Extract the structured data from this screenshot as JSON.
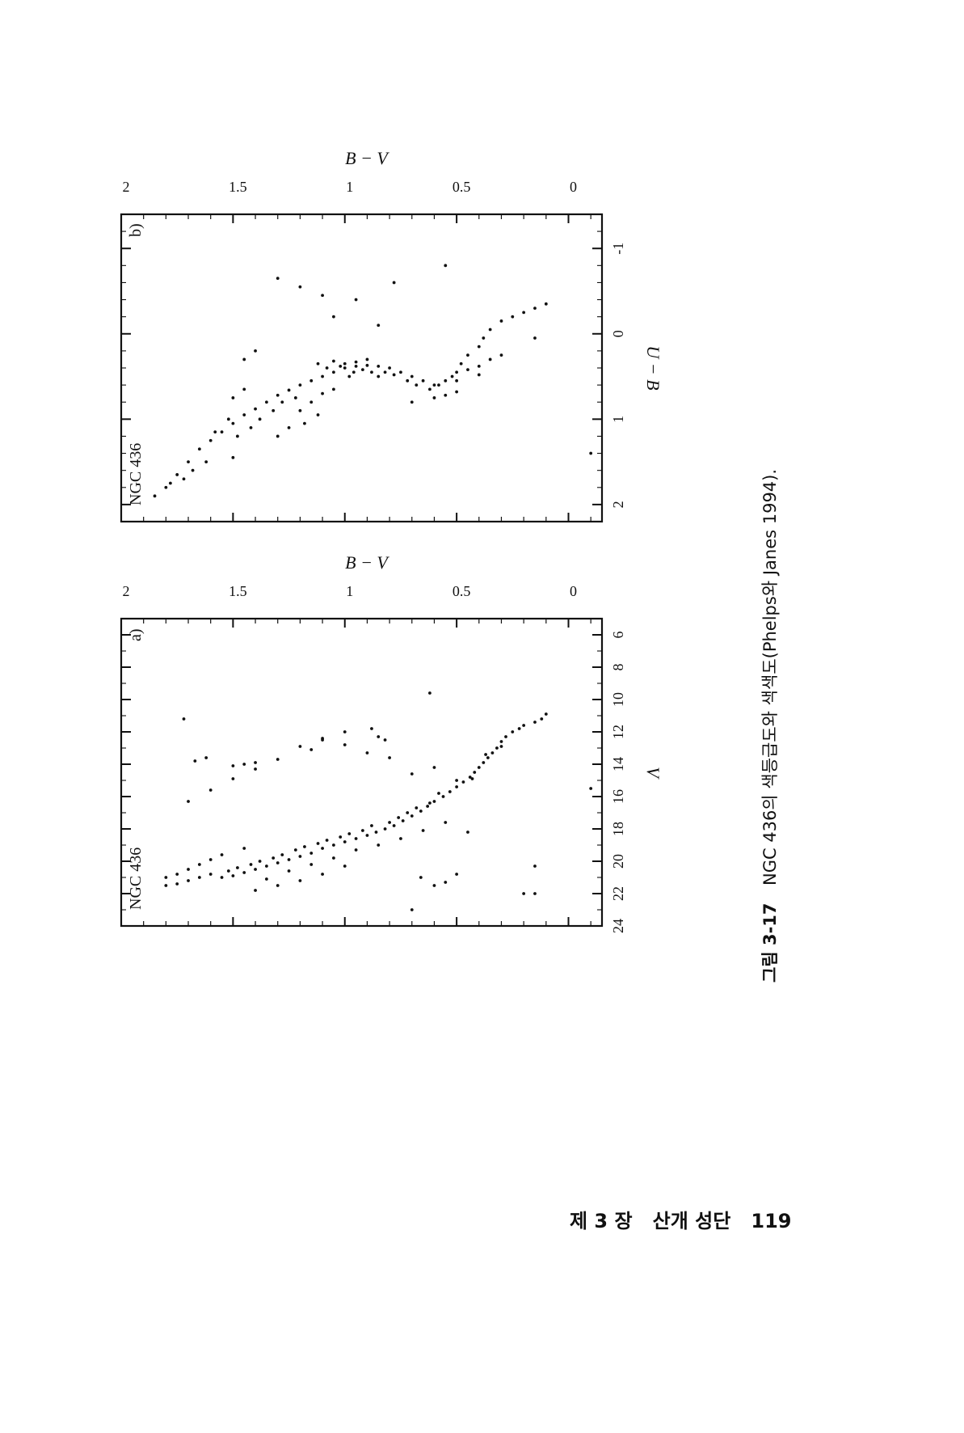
{
  "page": {
    "footer": "제 3 장   산개 성단   119",
    "caption": {
      "label": "그림 3-17",
      "text": "NGC 436의  색등급도와  색색도(Phelps와  Janes 1994)."
    }
  },
  "chart_data": [
    {
      "type": "scatter",
      "panel_label": "a)",
      "title": "NGC 436",
      "xlabel": "B − V",
      "ylabel": "V",
      "xlim": [
        -0.15,
        2.0
      ],
      "ylim": [
        24.0,
        5.0
      ],
      "x_ticks": [
        "0",
        "0.5",
        "1",
        "1.5",
        "2"
      ],
      "x_tick_values": [
        0,
        0.5,
        1,
        1.5,
        2
      ],
      "y_ticks": [
        "6",
        "8",
        "10",
        "12",
        "14",
        "16",
        "18",
        "20",
        "22",
        "24"
      ],
      "y_tick_values": [
        6,
        8,
        10,
        12,
        14,
        16,
        18,
        20,
        22,
        24
      ],
      "y_inverted": true,
      "grid": false,
      "points": [
        [
          0.1,
          10.9
        ],
        [
          0.12,
          11.2
        ],
        [
          0.15,
          11.4
        ],
        [
          0.2,
          11.6
        ],
        [
          0.25,
          12.0
        ],
        [
          0.28,
          12.3
        ],
        [
          0.3,
          12.6
        ],
        [
          0.32,
          13.0
        ],
        [
          0.34,
          13.3
        ],
        [
          0.36,
          13.6
        ],
        [
          0.38,
          13.9
        ],
        [
          0.4,
          14.2
        ],
        [
          0.42,
          14.5
        ],
        [
          0.44,
          14.8
        ],
        [
          0.47,
          15.1
        ],
        [
          0.5,
          15.4
        ],
        [
          0.53,
          15.7
        ],
        [
          0.56,
          16.0
        ],
        [
          0.6,
          16.3
        ],
        [
          0.63,
          16.6
        ],
        [
          0.66,
          16.9
        ],
        [
          0.7,
          17.2
        ],
        [
          0.74,
          17.5
        ],
        [
          0.78,
          17.8
        ],
        [
          0.82,
          18.0
        ],
        [
          0.86,
          18.2
        ],
        [
          0.9,
          18.4
        ],
        [
          0.95,
          18.6
        ],
        [
          1.0,
          18.8
        ],
        [
          1.05,
          19.0
        ],
        [
          1.1,
          19.2
        ],
        [
          1.15,
          19.5
        ],
        [
          1.2,
          19.7
        ],
        [
          1.25,
          19.9
        ],
        [
          1.3,
          20.1
        ],
        [
          1.35,
          20.3
        ],
        [
          1.4,
          20.5
        ],
        [
          1.45,
          20.7
        ],
        [
          1.5,
          20.9
        ],
        [
          1.55,
          21.0
        ],
        [
          0.22,
          11.8
        ],
        [
          0.3,
          12.9
        ],
        [
          0.37,
          13.4
        ],
        [
          0.43,
          14.9
        ],
        [
          0.5,
          15.0
        ],
        [
          0.58,
          15.8
        ],
        [
          0.62,
          16.4
        ],
        [
          0.68,
          16.7
        ],
        [
          0.72,
          17.0
        ],
        [
          0.76,
          17.3
        ],
        [
          0.8,
          17.6
        ],
        [
          0.88,
          17.8
        ],
        [
          0.92,
          18.1
        ],
        [
          0.98,
          18.3
        ],
        [
          1.02,
          18.5
        ],
        [
          1.08,
          18.7
        ],
        [
          1.12,
          18.9
        ],
        [
          1.18,
          19.1
        ],
        [
          1.22,
          19.3
        ],
        [
          1.28,
          19.6
        ],
        [
          1.32,
          19.8
        ],
        [
          1.38,
          20.0
        ],
        [
          1.42,
          20.2
        ],
        [
          1.48,
          20.4
        ],
        [
          1.52,
          20.6
        ],
        [
          1.6,
          20.8
        ],
        [
          1.65,
          21.0
        ],
        [
          1.7,
          21.2
        ],
        [
          1.75,
          21.4
        ],
        [
          1.8,
          21.5
        ],
        [
          0.6,
          14.2
        ],
        [
          0.7,
          14.6
        ],
        [
          0.8,
          13.6
        ],
        [
          0.9,
          13.3
        ],
        [
          1.0,
          12.8
        ],
        [
          1.1,
          12.4
        ],
        [
          1.2,
          12.9
        ],
        [
          1.3,
          13.7
        ],
        [
          1.4,
          14.3
        ],
        [
          1.5,
          14.9
        ],
        [
          1.6,
          15.6
        ],
        [
          1.7,
          16.3
        ],
        [
          0.95,
          19.3
        ],
        [
          1.05,
          19.8
        ],
        [
          1.15,
          20.2
        ],
        [
          1.25,
          20.6
        ],
        [
          1.35,
          21.1
        ],
        [
          1.0,
          20.3
        ],
        [
          1.1,
          20.8
        ],
        [
          1.2,
          21.2
        ],
        [
          1.3,
          21.5
        ],
        [
          1.4,
          21.8
        ],
        [
          0.85,
          19.0
        ],
        [
          0.75,
          18.6
        ],
        [
          0.65,
          18.1
        ],
        [
          0.55,
          17.6
        ],
        [
          1.45,
          19.2
        ],
        [
          1.55,
          19.6
        ],
        [
          1.6,
          19.9
        ],
        [
          1.65,
          20.2
        ],
        [
          1.7,
          20.5
        ],
        [
          1.75,
          20.8
        ],
        [
          1.8,
          21.0
        ],
        [
          0.2,
          22.0
        ],
        [
          0.15,
          20.3
        ],
        [
          0.45,
          18.2
        ],
        [
          0.5,
          20.8
        ],
        [
          0.55,
          21.3
        ],
        [
          0.6,
          21.5
        ],
        [
          0.66,
          21.0
        ],
        [
          0.7,
          23.0
        ],
        [
          0.15,
          22.0
        ],
        [
          -0.1,
          15.5
        ],
        [
          0.62,
          9.6
        ],
        [
          1.0,
          12.0
        ],
        [
          1.1,
          12.5
        ],
        [
          1.15,
          13.1
        ],
        [
          1.62,
          13.6
        ],
        [
          1.67,
          13.8
        ],
        [
          1.4,
          13.9
        ],
        [
          1.45,
          14.0
        ],
        [
          1.5,
          14.1
        ],
        [
          1.72,
          11.2
        ],
        [
          0.85,
          12.3
        ],
        [
          0.82,
          12.5
        ],
        [
          0.88,
          11.8
        ]
      ],
      "features": [
        "main sequence from (0.1, 11) down to (1.2, 19)",
        "dense giant/field clump around B−V 1.0–1.6, V 18–21.5"
      ]
    },
    {
      "type": "scatter",
      "panel_label": "b)",
      "title": "NGC 436",
      "xlabel": "B − V",
      "ylabel": "U − B",
      "xlim": [
        -0.15,
        2.0
      ],
      "ylim": [
        2.2,
        -1.4
      ],
      "x_ticks": [
        "0",
        "0.5",
        "1",
        "1.5",
        "2"
      ],
      "x_tick_values": [
        0,
        0.5,
        1,
        1.5,
        2
      ],
      "y_ticks": [
        "-1",
        "0",
        "1",
        "2"
      ],
      "y_tick_values": [
        -1,
        0,
        1,
        2
      ],
      "y_inverted": true,
      "grid": false,
      "points": [
        [
          0.1,
          -0.35
        ],
        [
          0.15,
          -0.3
        ],
        [
          0.2,
          -0.25
        ],
        [
          0.25,
          -0.2
        ],
        [
          0.3,
          -0.15
        ],
        [
          0.35,
          -0.05
        ],
        [
          0.38,
          0.05
        ],
        [
          0.4,
          0.15
        ],
        [
          0.45,
          0.25
        ],
        [
          0.48,
          0.35
        ],
        [
          0.5,
          0.45
        ],
        [
          0.55,
          0.55
        ],
        [
          0.6,
          0.6
        ],
        [
          0.65,
          0.55
        ],
        [
          0.7,
          0.5
        ],
        [
          0.75,
          0.45
        ],
        [
          0.8,
          0.4
        ],
        [
          0.85,
          0.38
        ],
        [
          0.9,
          0.37
        ],
        [
          0.95,
          0.38
        ],
        [
          1.0,
          0.4
        ],
        [
          1.05,
          0.45
        ],
        [
          1.1,
          0.5
        ],
        [
          1.15,
          0.55
        ],
        [
          1.2,
          0.6
        ],
        [
          1.25,
          0.66
        ],
        [
          1.3,
          0.72
        ],
        [
          1.35,
          0.8
        ],
        [
          1.4,
          0.88
        ],
        [
          1.45,
          0.95
        ],
        [
          1.5,
          1.05
        ],
        [
          1.55,
          1.15
        ],
        [
          1.6,
          1.25
        ],
        [
          1.65,
          1.35
        ],
        [
          1.7,
          1.5
        ],
        [
          1.75,
          1.65
        ],
        [
          1.8,
          1.8
        ],
        [
          1.85,
          1.9
        ],
        [
          0.9,
          0.3
        ],
        [
          0.95,
          0.33
        ],
        [
          1.0,
          0.35
        ],
        [
          1.02,
          0.38
        ],
        [
          0.92,
          0.42
        ],
        [
          0.96,
          0.45
        ],
        [
          0.98,
          0.5
        ],
        [
          1.05,
          0.32
        ],
        [
          1.08,
          0.4
        ],
        [
          1.12,
          0.35
        ],
        [
          0.88,
          0.45
        ],
        [
          0.85,
          0.5
        ],
        [
          0.82,
          0.45
        ],
        [
          0.78,
          0.48
        ],
        [
          0.72,
          0.55
        ],
        [
          0.68,
          0.6
        ],
        [
          0.62,
          0.65
        ],
        [
          0.58,
          0.6
        ],
        [
          0.52,
          0.5
        ],
        [
          0.45,
          0.42
        ],
        [
          0.4,
          0.38
        ],
        [
          0.35,
          0.3
        ],
        [
          1.22,
          0.75
        ],
        [
          1.28,
          0.8
        ],
        [
          1.32,
          0.9
        ],
        [
          1.38,
          1.0
        ],
        [
          1.42,
          1.1
        ],
        [
          1.48,
          1.2
        ],
        [
          1.52,
          1.0
        ],
        [
          1.58,
          1.15
        ],
        [
          1.2,
          0.9
        ],
        [
          1.25,
          1.1
        ],
        [
          1.3,
          1.2
        ],
        [
          1.1,
          0.7
        ],
        [
          1.05,
          0.65
        ],
        [
          1.15,
          0.8
        ],
        [
          1.12,
          0.95
        ],
        [
          1.18,
          1.05
        ],
        [
          1.62,
          1.5
        ],
        [
          1.68,
          1.6
        ],
        [
          1.72,
          1.7
        ],
        [
          1.78,
          1.75
        ],
        [
          0.7,
          0.8
        ],
        [
          0.6,
          0.75
        ],
        [
          0.55,
          0.72
        ],
        [
          0.5,
          0.68
        ],
        [
          0.15,
          0.05
        ],
        [
          0.85,
          -0.1
        ],
        [
          0.95,
          -0.4
        ],
        [
          1.05,
          -0.2
        ],
        [
          1.1,
          -0.45
        ],
        [
          1.2,
          -0.55
        ],
        [
          1.3,
          -0.65
        ],
        [
          1.4,
          0.2
        ],
        [
          1.45,
          0.3
        ],
        [
          0.5,
          0.55
        ],
        [
          -0.1,
          1.4
        ],
        [
          0.55,
          -0.8
        ],
        [
          0.78,
          -0.6
        ],
        [
          1.45,
          0.65
        ],
        [
          1.5,
          0.75
        ],
        [
          1.5,
          1.45
        ],
        [
          0.3,
          0.25
        ],
        [
          0.4,
          0.48
        ]
      ],
      "features": [
        "hot-star sequence from (0.1, −0.35) to (0.6, 0.6)",
        "cool giant branch rising to (1.85, 1.9)"
      ]
    }
  ]
}
